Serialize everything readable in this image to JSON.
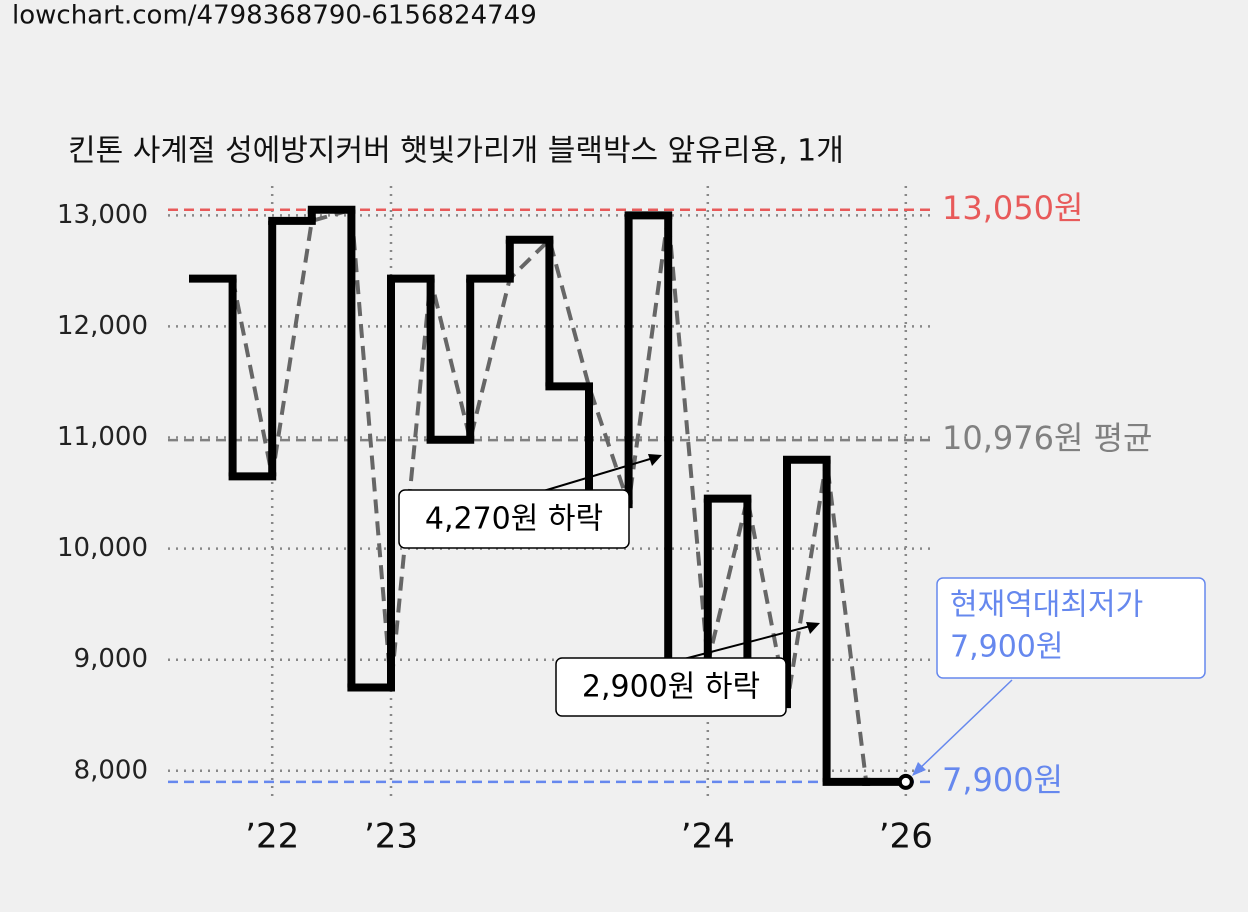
{
  "header": "lowchart.com/4798368790-6156824749",
  "chart_data": {
    "type": "step",
    "title": "킨톤 사계절 성에방지커버 햇빛가리개 블랙박스 앞유리용, 1개",
    "categories": [
      null,
      null,
      "’22",
      null,
      null,
      "’23",
      null,
      null,
      null,
      null,
      null,
      null,
      null,
      "’24",
      null,
      null,
      null,
      null,
      "’26"
    ],
    "values": [
      12430,
      10650,
      12950,
      13050,
      8750,
      12430,
      10980,
      12430,
      12780,
      11460,
      10400,
      13000,
      8970,
      10450,
      8600,
      10800,
      7900,
      7900,
      7900
    ],
    "color": "#000000",
    "ylim": [
      7800,
      13300
    ],
    "yticks": [
      {
        "value": 8000,
        "label": "8,000"
      },
      {
        "value": 9000,
        "label": "9,000"
      },
      {
        "value": 10000,
        "label": "10,000"
      },
      {
        "value": 11000,
        "label": "11,000"
      },
      {
        "value": 12000,
        "label": "12,000"
      },
      {
        "value": 13000,
        "label": "13,000"
      }
    ],
    "grid": true,
    "reference_lines": [
      {
        "value": 13050,
        "label": "13,050원",
        "color": "#e85a5a"
      },
      {
        "value": 10976,
        "label": "10,976원 평균",
        "color": "#808080"
      },
      {
        "value": 7900,
        "label": "7,900원",
        "color": "#6688ee"
      }
    ],
    "annotations": [
      "4,270원 하락",
      "2,900원 하락"
    ],
    "current_low": [
      "현재역대최저가",
      "7,900원"
    ]
  }
}
